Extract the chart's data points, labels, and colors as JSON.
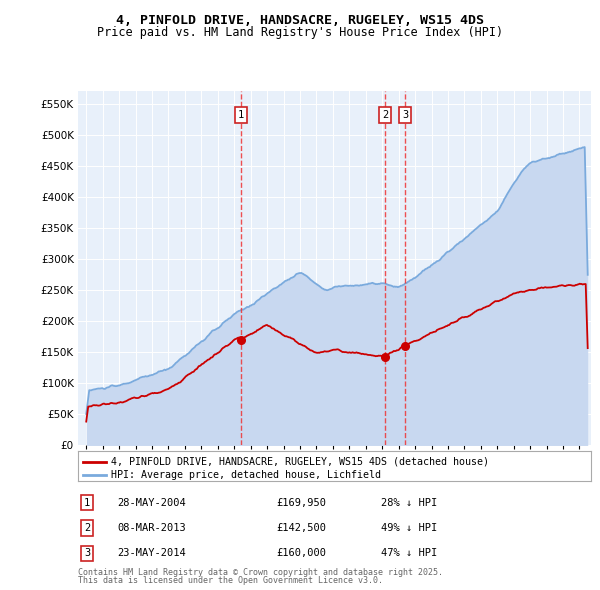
{
  "title_line1": "4, PINFOLD DRIVE, HANDSACRE, RUGELEY, WS15 4DS",
  "title_line2": "Price paid vs. HM Land Registry's House Price Index (HPI)",
  "legend_label_red": "4, PINFOLD DRIVE, HANDSACRE, RUGELEY, WS15 4DS (detached house)",
  "legend_label_blue": "HPI: Average price, detached house, Lichfield",
  "transactions": [
    {
      "num": 1,
      "date": "28-MAY-2004",
      "price": 169950,
      "price_str": "£169,950",
      "pct": "28%",
      "dir": "↓"
    },
    {
      "num": 2,
      "date": "08-MAR-2013",
      "price": 142500,
      "price_str": "£142,500",
      "pct": "49%",
      "dir": "↓"
    },
    {
      "num": 3,
      "date": "23-MAY-2014",
      "price": 160000,
      "price_str": "£160,000",
      "pct": "47%",
      "dir": "↓"
    }
  ],
  "transaction_dates_decimal": [
    2004.41,
    2013.18,
    2014.39
  ],
  "transaction_prices": [
    169950,
    142500,
    160000
  ],
  "vline_color": "#ee3333",
  "red_color": "#cc0000",
  "blue_color": "#7aaadd",
  "blue_fill": "#c8d8f0",
  "background_color": "#e8f0fa",
  "ylim": [
    0,
    570000
  ],
  "xlim_start": 1994.5,
  "xlim_end": 2025.7,
  "footnote_line1": "Contains HM Land Registry data © Crown copyright and database right 2025.",
  "footnote_line2": "This data is licensed under the Open Government Licence v3.0."
}
